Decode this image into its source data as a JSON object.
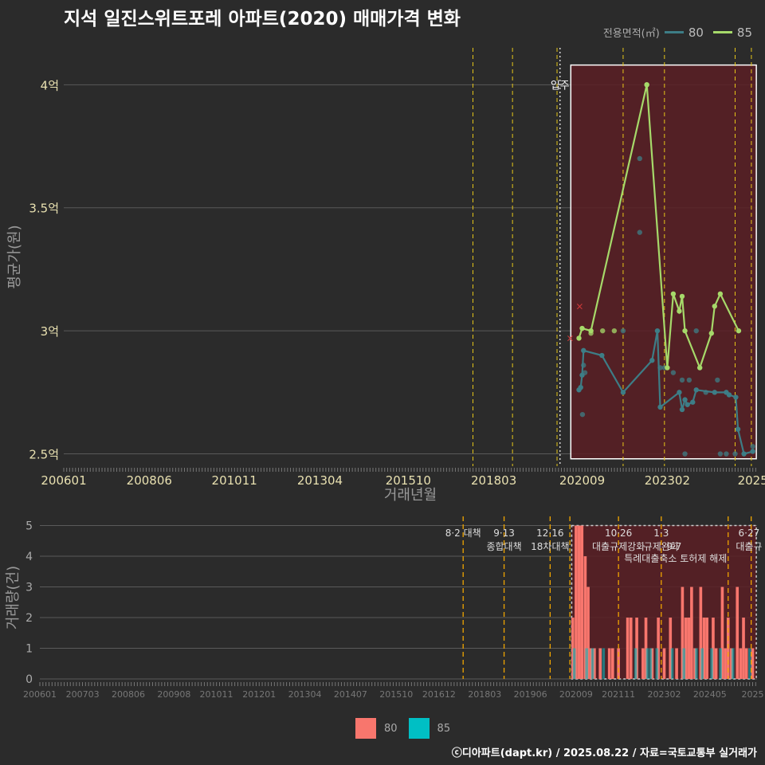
{
  "title": "지석 일진스위트포레 아파트(2020) 매매가격 변화",
  "footer": "ⓒ디아파트(dapt.kr) / 2025.08.22 / 자료=국토교통부 실거래가",
  "legend_top": {
    "title": "전용면적(㎡)",
    "items": [
      {
        "label": "80",
        "color": "#3d7d86"
      },
      {
        "label": "85",
        "color": "#a6d96a"
      }
    ]
  },
  "legend_bottom": {
    "items": [
      {
        "label": "80",
        "color": "#f8766d"
      },
      {
        "label": "85",
        "color": "#00bfc4"
      }
    ]
  },
  "colors": {
    "bg": "#2b2b2b",
    "grid": "#5a5a5a",
    "policy": "#e6c619",
    "policy_bottom": "#f0a500",
    "region": "#5a1f24",
    "s80": "#3d7d86",
    "s85": "#a6d96a",
    "bar80": "#f8766d",
    "bar85": "#00bfc4"
  },
  "chart_data": [
    {
      "type": "line",
      "ylabel": "평균가(원)",
      "xlabel": "거래년월",
      "ylim": [
        2.45,
        4.15
      ],
      "xlim": [
        2006.0,
        2025.62
      ],
      "y_ticks": [
        {
          "v": 2.5,
          "label": "2.5억"
        },
        {
          "v": 3,
          "label": "3억"
        },
        {
          "v": 3.5,
          "label": "3.5억"
        },
        {
          "v": 4,
          "label": "4억"
        }
      ],
      "x_ticks": [
        {
          "v": 2006.0,
          "label": "200601"
        },
        {
          "v": 2008.42,
          "label": "200806"
        },
        {
          "v": 2010.83,
          "label": "201011"
        },
        {
          "v": 2013.25,
          "label": "201304"
        },
        {
          "v": 2015.75,
          "label": "201510"
        },
        {
          "v": 2018.17,
          "label": "201803"
        },
        {
          "v": 2020.67,
          "label": "202009"
        },
        {
          "v": 2023.08,
          "label": "202302"
        },
        {
          "v": 2025.5,
          "label": "2025"
        }
      ],
      "annotation": "입주",
      "annotation_x": 2020.0,
      "policy_lines": [
        2017.58,
        2018.7,
        2019.96,
        2021.83,
        2023.0,
        2025.0,
        2025.46
      ],
      "highlight": {
        "x0": 2020.35,
        "x1": 2025.6,
        "y0": 2.48,
        "y1": 4.08
      },
      "cross_points": [
        {
          "x": 2020.33,
          "y": 2.97
        },
        {
          "x": 2020.6,
          "y": 3.1
        }
      ],
      "series": [
        {
          "name": "80",
          "points": [
            {
              "x": 2020.58,
              "y": 2.76
            },
            {
              "x": 2020.63,
              "y": 2.77
            },
            {
              "x": 2020.67,
              "y": 2.82
            },
            {
              "x": 2020.71,
              "y": 2.92
            },
            {
              "x": 2021.23,
              "y": 2.9
            },
            {
              "x": 2021.83,
              "y": 2.75
            },
            {
              "x": 2022.65,
              "y": 2.88
            },
            {
              "x": 2022.8,
              "y": 3.0
            },
            {
              "x": 2022.88,
              "y": 2.69
            },
            {
              "x": 2023.42,
              "y": 2.75
            },
            {
              "x": 2023.5,
              "y": 2.68
            },
            {
              "x": 2023.58,
              "y": 2.72
            },
            {
              "x": 2023.65,
              "y": 2.7
            },
            {
              "x": 2023.8,
              "y": 2.71
            },
            {
              "x": 2023.9,
              "y": 2.76
            },
            {
              "x": 2024.42,
              "y": 2.75
            },
            {
              "x": 2024.75,
              "y": 2.75
            },
            {
              "x": 2024.83,
              "y": 2.74
            },
            {
              "x": 2025.02,
              "y": 2.73
            },
            {
              "x": 2025.08,
              "y": 2.6
            },
            {
              "x": 2025.25,
              "y": 2.5
            },
            {
              "x": 2025.5,
              "y": 2.51
            }
          ],
          "scatter": [
            {
              "x": 2020.68,
              "y": 2.66
            },
            {
              "x": 2020.71,
              "y": 2.86
            },
            {
              "x": 2020.75,
              "y": 2.83
            },
            {
              "x": 2021.83,
              "y": 3.0
            },
            {
              "x": 2022.3,
              "y": 3.7
            },
            {
              "x": 2022.3,
              "y": 3.4
            },
            {
              "x": 2022.88,
              "y": 2.85
            },
            {
              "x": 2023.0,
              "y": 2.85
            },
            {
              "x": 2023.25,
              "y": 2.83
            },
            {
              "x": 2023.5,
              "y": 2.8
            },
            {
              "x": 2023.58,
              "y": 2.5
            },
            {
              "x": 2023.7,
              "y": 2.8
            },
            {
              "x": 2023.9,
              "y": 3.0
            },
            {
              "x": 2024.0,
              "y": 2.85
            },
            {
              "x": 2024.17,
              "y": 2.75
            },
            {
              "x": 2024.5,
              "y": 2.8
            },
            {
              "x": 2024.58,
              "y": 2.5
            },
            {
              "x": 2024.75,
              "y": 2.5
            },
            {
              "x": 2025.0,
              "y": 2.5
            },
            {
              "x": 2025.5,
              "y": 2.53
            }
          ]
        },
        {
          "name": "85",
          "points": [
            {
              "x": 2020.58,
              "y": 2.97
            },
            {
              "x": 2020.67,
              "y": 3.01
            },
            {
              "x": 2020.92,
              "y": 3.0
            },
            {
              "x": 2022.5,
              "y": 4.0
            },
            {
              "x": 2023.08,
              "y": 2.85
            },
            {
              "x": 2023.25,
              "y": 3.15
            },
            {
              "x": 2023.42,
              "y": 3.08
            },
            {
              "x": 2023.5,
              "y": 3.14
            },
            {
              "x": 2023.58,
              "y": 3.0
            },
            {
              "x": 2024.0,
              "y": 2.85
            },
            {
              "x": 2024.33,
              "y": 2.99
            },
            {
              "x": 2024.42,
              "y": 3.1
            },
            {
              "x": 2024.58,
              "y": 3.15
            },
            {
              "x": 2025.1,
              "y": 3.0
            }
          ],
          "scatter": [
            {
              "x": 2020.92,
              "y": 2.99
            },
            {
              "x": 2021.25,
              "y": 3.0
            },
            {
              "x": 2021.58,
              "y": 3.0
            },
            {
              "x": 2022.5,
              "y": 4.0
            }
          ]
        }
      ]
    },
    {
      "type": "bar",
      "ylabel": "거래량(건)",
      "ylim": [
        0,
        5.3
      ],
      "xlim": [
        2006.0,
        2025.62
      ],
      "y_ticks": [
        0,
        1,
        2,
        3,
        4,
        5
      ],
      "x_ticks": [
        {
          "v": 2006.0,
          "label": "200601"
        },
        {
          "v": 2007.17,
          "label": "200703"
        },
        {
          "v": 2008.42,
          "label": "200806"
        },
        {
          "v": 2009.67,
          "label": "200908"
        },
        {
          "v": 2010.83,
          "label": "201011"
        },
        {
          "v": 2012.0,
          "label": "201201"
        },
        {
          "v": 2013.25,
          "label": "201304"
        },
        {
          "v": 2014.5,
          "label": "201407"
        },
        {
          "v": 2015.75,
          "label": "201510"
        },
        {
          "v": 2016.92,
          "label": "201612"
        },
        {
          "v": 2018.17,
          "label": "201803"
        },
        {
          "v": 2019.42,
          "label": "201906"
        },
        {
          "v": 2020.67,
          "label": "202009"
        },
        {
          "v": 2021.83,
          "label": "202111"
        },
        {
          "v": 2023.08,
          "label": "202302"
        },
        {
          "v": 2024.33,
          "label": "202405"
        },
        {
          "v": 2025.5,
          "label": "2025"
        }
      ],
      "policy_lines": [
        2017.58,
        2018.7,
        2019.96,
        2020.5,
        2021.83,
        2023.0,
        2024.83,
        2025.46
      ],
      "policy_labels": [
        {
          "x": 2017.58,
          "date": "8·2 대책",
          "text": ""
        },
        {
          "x": 2018.7,
          "date": "9·13",
          "text": "종합대책"
        },
        {
          "x": 2019.96,
          "date": "12·16",
          "text": "18차대책"
        },
        {
          "x": 2021.83,
          "date": "10·26",
          "text": "대출규제강화"
        },
        {
          "x": 2023.0,
          "date": "1·3",
          "text": "규제완화"
        },
        {
          "x": 2023.35,
          "date": "",
          "text": "9·7"
        },
        {
          "x": 2023.5,
          "date": "",
          "text": "특례대출축소 토허제 해제"
        },
        {
          "x": 2025.4,
          "date": "6·27",
          "text": "대출규"
        }
      ],
      "highlight": {
        "x0": 2020.55,
        "x1": 2025.6
      },
      "bars80": [
        {
          "x": 2020.58,
          "v": 2
        },
        {
          "x": 2020.67,
          "v": 5
        },
        {
          "x": 2020.75,
          "v": 5
        },
        {
          "x": 2020.83,
          "v": 5
        },
        {
          "x": 2020.92,
          "v": 4
        },
        {
          "x": 2021.0,
          "v": 3
        },
        {
          "x": 2021.08,
          "v": 1
        },
        {
          "x": 2021.17,
          "v": 1
        },
        {
          "x": 2021.33,
          "v": 1
        },
        {
          "x": 2021.58,
          "v": 1
        },
        {
          "x": 2021.67,
          "v": 1
        },
        {
          "x": 2021.83,
          "v": 1
        },
        {
          "x": 2022.08,
          "v": 2
        },
        {
          "x": 2022.17,
          "v": 2
        },
        {
          "x": 2022.33,
          "v": 2
        },
        {
          "x": 2022.5,
          "v": 1
        },
        {
          "x": 2022.58,
          "v": 2
        },
        {
          "x": 2022.75,
          "v": 1
        },
        {
          "x": 2022.92,
          "v": 2
        },
        {
          "x": 2023.08,
          "v": 1
        },
        {
          "x": 2023.25,
          "v": 2
        },
        {
          "x": 2023.42,
          "v": 1
        },
        {
          "x": 2023.58,
          "v": 3
        },
        {
          "x": 2023.67,
          "v": 2
        },
        {
          "x": 2023.75,
          "v": 2
        },
        {
          "x": 2023.83,
          "v": 3
        },
        {
          "x": 2023.92,
          "v": 1
        },
        {
          "x": 2024.08,
          "v": 3
        },
        {
          "x": 2024.17,
          "v": 2
        },
        {
          "x": 2024.25,
          "v": 2
        },
        {
          "x": 2024.42,
          "v": 2
        },
        {
          "x": 2024.5,
          "v": 1
        },
        {
          "x": 2024.67,
          "v": 3
        },
        {
          "x": 2024.75,
          "v": 1
        },
        {
          "x": 2024.83,
          "v": 2
        },
        {
          "x": 2024.92,
          "v": 1
        },
        {
          "x": 2025.08,
          "v": 3
        },
        {
          "x": 2025.17,
          "v": 1
        },
        {
          "x": 2025.25,
          "v": 2
        },
        {
          "x": 2025.33,
          "v": 1
        },
        {
          "x": 2025.5,
          "v": 1
        }
      ],
      "bars85": [
        {
          "x": 2020.62,
          "v": 1
        },
        {
          "x": 2020.96,
          "v": 1
        },
        {
          "x": 2021.12,
          "v": 1
        },
        {
          "x": 2021.42,
          "v": 1
        },
        {
          "x": 2022.3,
          "v": 1
        },
        {
          "x": 2022.62,
          "v": 1
        },
        {
          "x": 2022.71,
          "v": 1
        },
        {
          "x": 2022.88,
          "v": 1
        },
        {
          "x": 2023.3,
          "v": 1
        },
        {
          "x": 2023.62,
          "v": 1
        },
        {
          "x": 2023.96,
          "v": 1
        },
        {
          "x": 2024.12,
          "v": 1
        },
        {
          "x": 2024.38,
          "v": 1
        },
        {
          "x": 2024.62,
          "v": 1
        },
        {
          "x": 2024.96,
          "v": 1
        },
        {
          "x": 2025.42,
          "v": 1
        }
      ]
    }
  ]
}
